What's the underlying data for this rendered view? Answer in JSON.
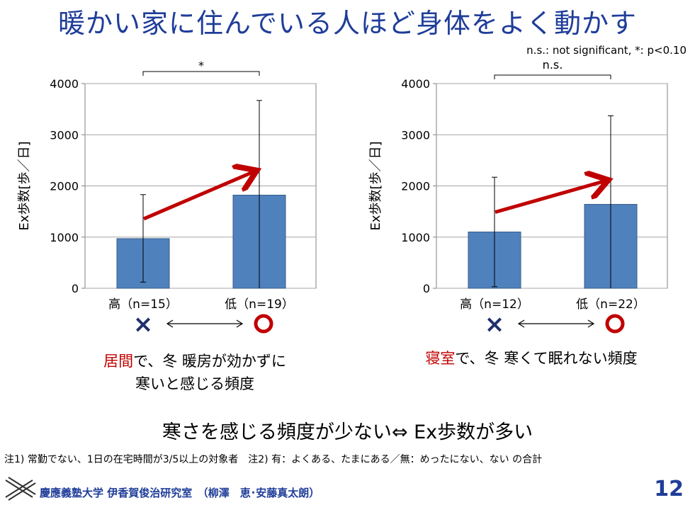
{
  "title": "暖かい家に住んでいる人ほど身体をよく動かす",
  "significance_note": "n.s.: not significant, *: p<0.10",
  "chart_data": [
    {
      "type": "bar",
      "ylabel": "Ex歩数[歩／日]",
      "ylim": [
        0,
        4000
      ],
      "yticks": [
        "0",
        "1000",
        "2000",
        "3000",
        "4000"
      ],
      "categories": [
        "高（n=15）",
        "低（n=19）"
      ],
      "values": [
        970,
        1820
      ],
      "error_upper": [
        1830,
        3670
      ],
      "error_lower": [
        120,
        0
      ],
      "significance": "*",
      "bar_color": "#4f81bd",
      "arrow_color": "#c00000"
    },
    {
      "type": "bar",
      "ylabel": "Ex歩数[歩／日]",
      "ylim": [
        0,
        4000
      ],
      "yticks": [
        "0",
        "1000",
        "2000",
        "3000",
        "4000"
      ],
      "categories": [
        "高（n=12）",
        "低（n=22）"
      ],
      "values": [
        1100,
        1640
      ],
      "error_upper": [
        2170,
        3370
      ],
      "error_lower": [
        30,
        0
      ],
      "significance": "n.s.",
      "bar_color": "#4f81bd",
      "arrow_color": "#c00000"
    }
  ],
  "markers": {
    "bad": "×",
    "good": "○"
  },
  "captions": {
    "left_red": "居間",
    "left_rest": "で、冬 暖房が効かずに",
    "left_line2": "寒いと感じる頻度",
    "right_red": "寝室",
    "right_rest": "で、冬 寒くて眠れない頻度"
  },
  "summary": "寒さを感じる頻度が少ない⇔ Ex歩数が多い",
  "footnote": "注1) 常勤でない、1日の在宅時間が3/5以上の対象者　注2) 有：よくある、たまにある／無：めったにない、ない の合計",
  "footer": "慶應義塾大学 伊香賀俊治研究室　（柳澤　恵･安藤真太朗）",
  "page_number": "12"
}
